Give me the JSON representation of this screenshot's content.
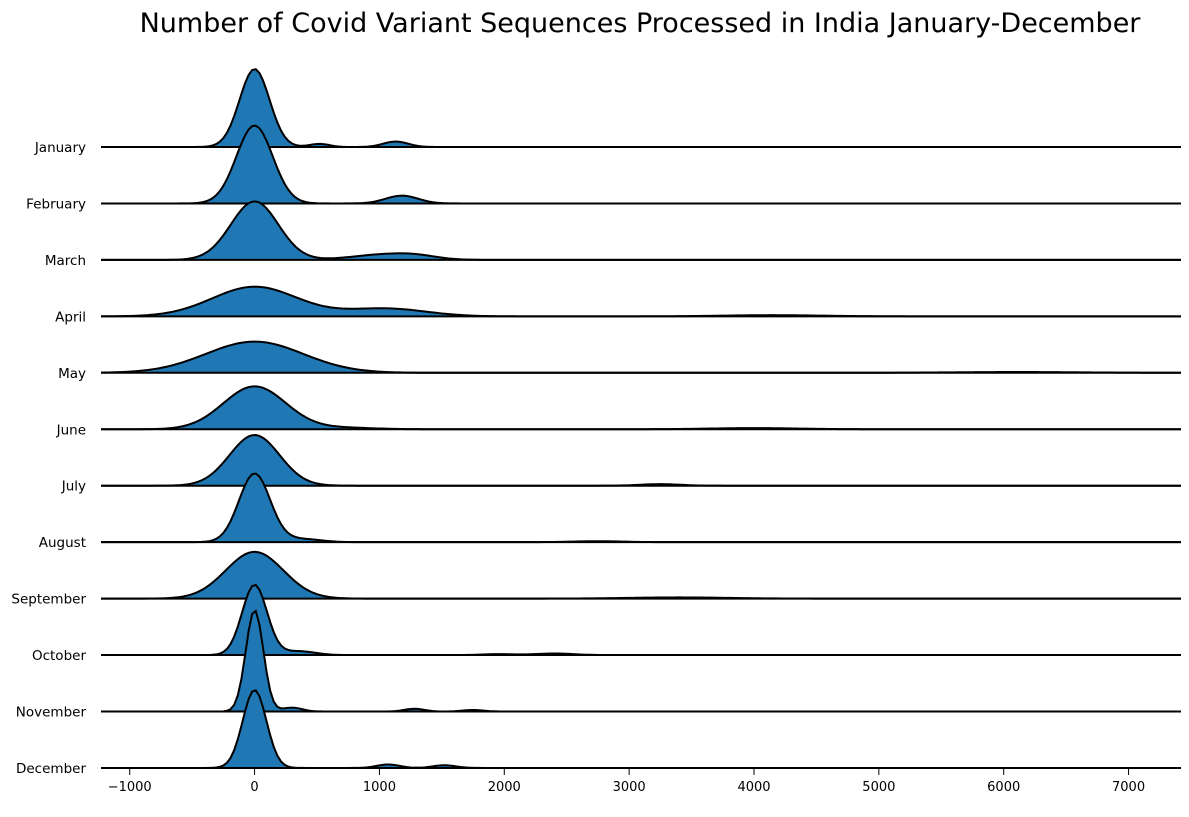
{
  "chart_data": {
    "type": "ridgeline",
    "title": "Number of Covid Variant Sequences Processed in India January-December",
    "xlabel": "",
    "ylabel": "",
    "xlim": [
      -1230,
      7420
    ],
    "xticks": [
      -1000,
      0,
      1000,
      2000,
      3000,
      4000,
      5000,
      6000,
      7000
    ],
    "xtick_labels": [
      "−1000",
      "0",
      "1000",
      "2000",
      "3000",
      "4000",
      "5000",
      "6000",
      "7000"
    ],
    "grid": false,
    "fill_color": "#1f77b4",
    "line_color": "#000000",
    "density_unit": "relative peak height",
    "series": [
      {
        "name": "January",
        "components": [
          {
            "mu": 0,
            "sigma": 120,
            "amp": 1.0
          },
          {
            "mu": 520,
            "sigma": 80,
            "amp": 0.04
          },
          {
            "mu": 1130,
            "sigma": 100,
            "amp": 0.07
          }
        ]
      },
      {
        "name": "February",
        "components": [
          {
            "mu": 0,
            "sigma": 145,
            "amp": 1.0
          },
          {
            "mu": 1180,
            "sigma": 130,
            "amp": 0.1
          }
        ]
      },
      {
        "name": "March",
        "components": [
          {
            "mu": 0,
            "sigma": 190,
            "amp": 0.75
          },
          {
            "mu": 1050,
            "sigma": 260,
            "amp": 0.07
          },
          {
            "mu": 1300,
            "sigma": 160,
            "amp": 0.03
          }
        ]
      },
      {
        "name": "April",
        "components": [
          {
            "mu": 0,
            "sigma": 340,
            "amp": 0.38
          },
          {
            "mu": 1050,
            "sigma": 320,
            "amp": 0.1
          },
          {
            "mu": 4150,
            "sigma": 400,
            "amp": 0.015
          }
        ]
      },
      {
        "name": "May",
        "components": [
          {
            "mu": 0,
            "sigma": 390,
            "amp": 0.4
          },
          {
            "mu": 6100,
            "sigma": 500,
            "amp": 0.01
          }
        ]
      },
      {
        "name": "June",
        "components": [
          {
            "mu": 0,
            "sigma": 250,
            "amp": 0.55
          },
          {
            "mu": 700,
            "sigma": 250,
            "amp": 0.02
          },
          {
            "mu": 4000,
            "sigma": 350,
            "amp": 0.015
          }
        ]
      },
      {
        "name": "July",
        "components": [
          {
            "mu": 0,
            "sigma": 200,
            "amp": 0.65
          },
          {
            "mu": 3250,
            "sigma": 160,
            "amp": 0.02
          }
        ]
      },
      {
        "name": "August",
        "components": [
          {
            "mu": 0,
            "sigma": 125,
            "amp": 0.88
          },
          {
            "mu": 380,
            "sigma": 150,
            "amp": 0.04
          },
          {
            "mu": 2750,
            "sigma": 200,
            "amp": 0.012
          }
        ]
      },
      {
        "name": "September",
        "components": [
          {
            "mu": 0,
            "sigma": 230,
            "amp": 0.6
          },
          {
            "mu": 3400,
            "sigma": 400,
            "amp": 0.015
          }
        ]
      },
      {
        "name": "October",
        "components": [
          {
            "mu": 0,
            "sigma": 100,
            "amp": 0.9
          },
          {
            "mu": 350,
            "sigma": 130,
            "amp": 0.05
          },
          {
            "mu": 1950,
            "sigma": 120,
            "amp": 0.012
          },
          {
            "mu": 2400,
            "sigma": 150,
            "amp": 0.02
          }
        ]
      },
      {
        "name": "November",
        "components": [
          {
            "mu": 0,
            "sigma": 70,
            "amp": 1.3
          },
          {
            "mu": 300,
            "sigma": 80,
            "amp": 0.05
          },
          {
            "mu": 1280,
            "sigma": 80,
            "amp": 0.035
          },
          {
            "mu": 1750,
            "sigma": 80,
            "amp": 0.02
          }
        ]
      },
      {
        "name": "December",
        "components": [
          {
            "mu": 0,
            "sigma": 95,
            "amp": 1.0
          },
          {
            "mu": 1070,
            "sigma": 90,
            "amp": 0.045
          },
          {
            "mu": 1520,
            "sigma": 90,
            "amp": 0.035
          }
        ]
      }
    ]
  }
}
